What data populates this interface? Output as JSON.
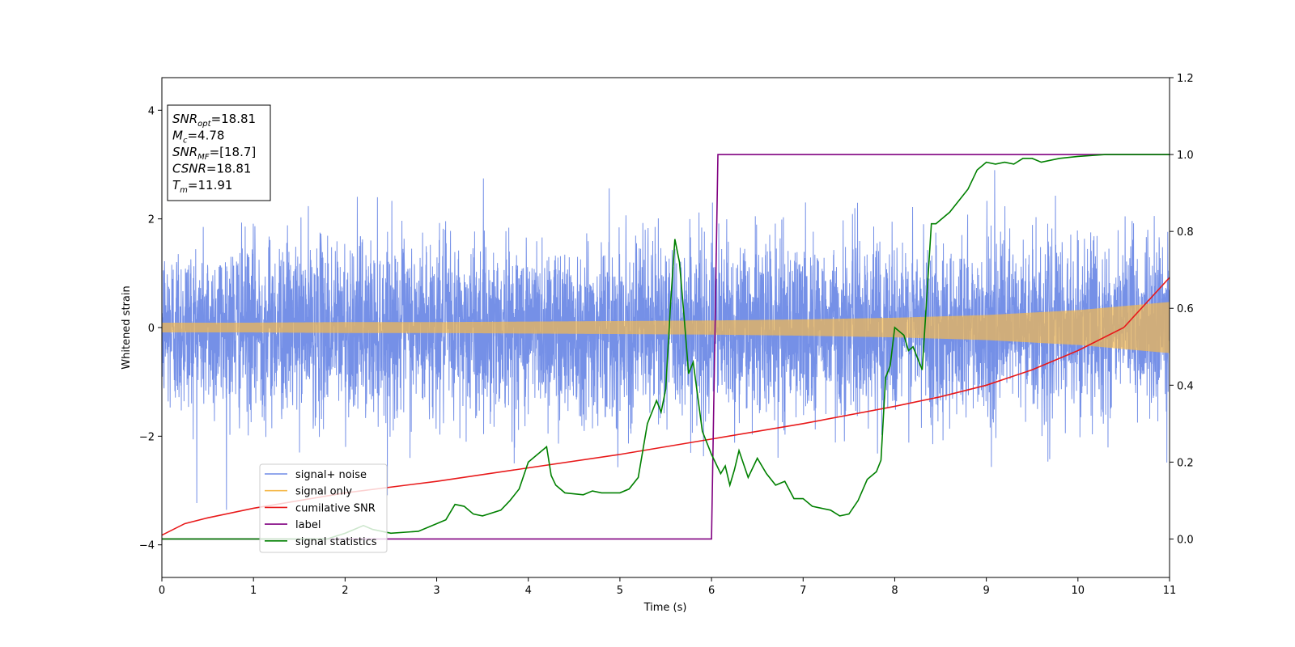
{
  "chart_data": {
    "type": "line",
    "title": "",
    "xlabel": "Time (s)",
    "ylabel": "Whitened strain",
    "y2label": "",
    "xlim": [
      0,
      11
    ],
    "ylim": [
      -4.6,
      4.6
    ],
    "y2lim": [
      -0.1,
      1.2
    ],
    "xticks": [
      "0",
      "1",
      "2",
      "3",
      "4",
      "5",
      "6",
      "7",
      "8",
      "9",
      "10",
      "11"
    ],
    "yticks": [
      "−4",
      "−2",
      "0",
      "2",
      "4"
    ],
    "y2ticks": [
      "0.0",
      "0.2",
      "0.4",
      "0.6",
      "0.8",
      "1.0",
      "1.2"
    ],
    "grid": false,
    "legend_position": "lower-left",
    "annotation": {
      "lines": [
        {
          "name": "SNR",
          "sub": "opt",
          "value": "=18.81"
        },
        {
          "name": "M",
          "sub": "c",
          "value": "=4.78"
        },
        {
          "name": "SNR",
          "sub": "MF",
          "value": "=[18.7]"
        },
        {
          "name": "CSNR",
          "sub": "",
          "value": "=18.81"
        },
        {
          "name": "T",
          "sub": "m",
          "value": "=11.91"
        }
      ]
    },
    "series": [
      {
        "name": "signal+ noise",
        "axis": "left",
        "color": "#6e8ae6",
        "kind": "noise",
        "sigma": 0.8,
        "peak_range": [
          -4.2,
          4.2
        ]
      },
      {
        "name": "signal only",
        "axis": "left",
        "color": "#f5b94d",
        "kind": "envelope",
        "x": [
          0,
          1,
          2,
          3,
          4,
          5,
          6,
          7,
          8,
          9,
          10,
          11
        ],
        "amplitude": [
          0.09,
          0.09,
          0.1,
          0.1,
          0.11,
          0.12,
          0.13,
          0.15,
          0.18,
          0.23,
          0.32,
          0.47
        ]
      },
      {
        "name": "cumilative SNR",
        "axis": "right",
        "color": "#e8191a",
        "x": [
          0,
          0.25,
          0.5,
          1,
          1.5,
          2,
          3,
          4,
          5,
          6,
          7,
          8,
          8.5,
          9,
          9.5,
          10,
          10.5,
          11
        ],
        "y": [
          0.01,
          0.04,
          0.055,
          0.08,
          0.1,
          0.12,
          0.15,
          0.185,
          0.22,
          0.26,
          0.3,
          0.345,
          0.37,
          0.4,
          0.44,
          0.49,
          0.55,
          0.68
        ]
      },
      {
        "name": "label",
        "axis": "right",
        "color": "#800080",
        "x": [
          0,
          6.0,
          6.07,
          11
        ],
        "y": [
          0,
          0,
          1,
          1
        ]
      },
      {
        "name": "signal statistics",
        "axis": "right",
        "color": "#008000",
        "x": [
          0,
          1.8,
          2.0,
          2.1,
          2.2,
          2.3,
          2.5,
          2.8,
          3.0,
          3.1,
          3.2,
          3.3,
          3.4,
          3.5,
          3.7,
          3.8,
          3.9,
          4.0,
          4.1,
          4.2,
          4.25,
          4.3,
          4.4,
          4.6,
          4.7,
          4.8,
          5.0,
          5.1,
          5.2,
          5.3,
          5.4,
          5.45,
          5.5,
          5.55,
          5.6,
          5.65,
          5.7,
          5.75,
          5.8,
          5.85,
          5.9,
          6.0,
          6.1,
          6.15,
          6.2,
          6.25,
          6.3,
          6.4,
          6.5,
          6.6,
          6.7,
          6.8,
          6.9,
          7.0,
          7.1,
          7.2,
          7.3,
          7.4,
          7.5,
          7.6,
          7.7,
          7.8,
          7.85,
          7.9,
          7.95,
          8.0,
          8.05,
          8.1,
          8.15,
          8.2,
          8.3,
          8.4,
          8.45,
          8.5,
          8.6,
          8.7,
          8.8,
          8.9,
          9.0,
          9.1,
          9.2,
          9.3,
          9.4,
          9.5,
          9.6,
          9.8,
          10.0,
          10.3,
          11.0
        ],
        "y": [
          0.0,
          0.0,
          0.015,
          0.025,
          0.035,
          0.025,
          0.015,
          0.02,
          0.04,
          0.05,
          0.09,
          0.085,
          0.065,
          0.06,
          0.075,
          0.1,
          0.13,
          0.2,
          0.22,
          0.24,
          0.165,
          0.14,
          0.12,
          0.115,
          0.125,
          0.12,
          0.12,
          0.13,
          0.16,
          0.3,
          0.36,
          0.33,
          0.39,
          0.6,
          0.78,
          0.72,
          0.58,
          0.43,
          0.46,
          0.37,
          0.28,
          0.22,
          0.17,
          0.19,
          0.14,
          0.18,
          0.23,
          0.16,
          0.21,
          0.17,
          0.14,
          0.15,
          0.105,
          0.105,
          0.085,
          0.08,
          0.075,
          0.06,
          0.065,
          0.1,
          0.155,
          0.175,
          0.205,
          0.42,
          0.45,
          0.55,
          0.54,
          0.53,
          0.49,
          0.5,
          0.44,
          0.82,
          0.82,
          0.83,
          0.85,
          0.88,
          0.91,
          0.96,
          0.98,
          0.975,
          0.98,
          0.975,
          0.99,
          0.99,
          0.98,
          0.99,
          0.995,
          1.0,
          1.0
        ]
      }
    ]
  }
}
